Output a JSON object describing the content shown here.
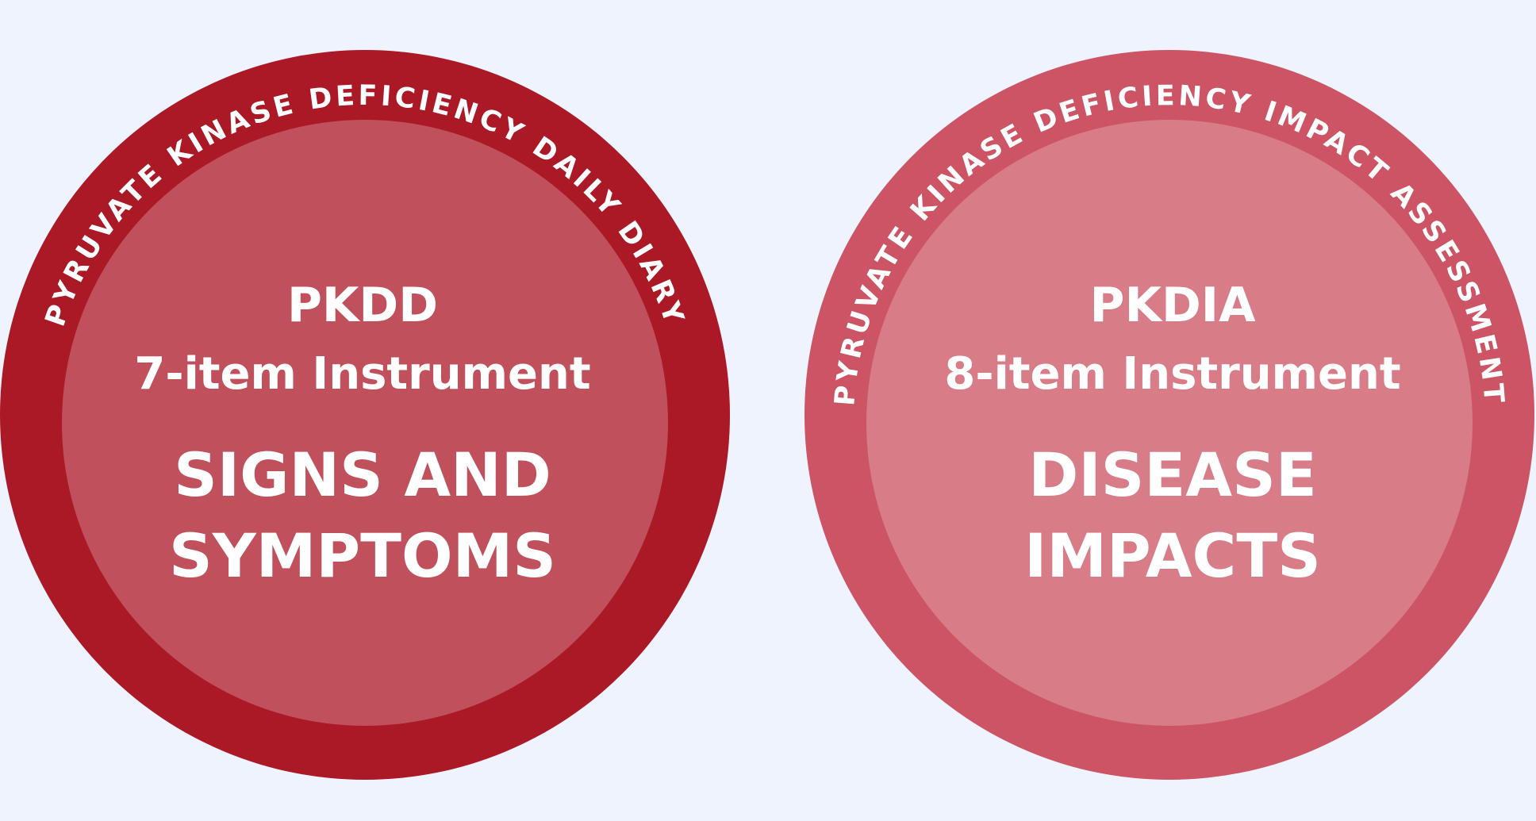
{
  "background_color": "#eef3fd",
  "circles": [
    {
      "id": "pkdd",
      "arc_label": "PYRUVATE KINASE DEFICIENCY DAILY DIARY",
      "code": "PKDD",
      "subtitle": "7-item Instrument",
      "line1": "SIGNS AND",
      "line2": "SYMPTOMS",
      "outer_color": "#ab1826",
      "inner_color": "#c0505b"
    },
    {
      "id": "pkdia",
      "arc_label": "PYRUVATE KINASE DEFICIENCY IMPACT ASSESSMENT",
      "code": "PKDIA",
      "subtitle": "8-item Instrument",
      "line1": "DISEASE",
      "line2": "IMPACTS",
      "outer_color": "#cc5465",
      "inner_color": "#d87c88"
    }
  ]
}
